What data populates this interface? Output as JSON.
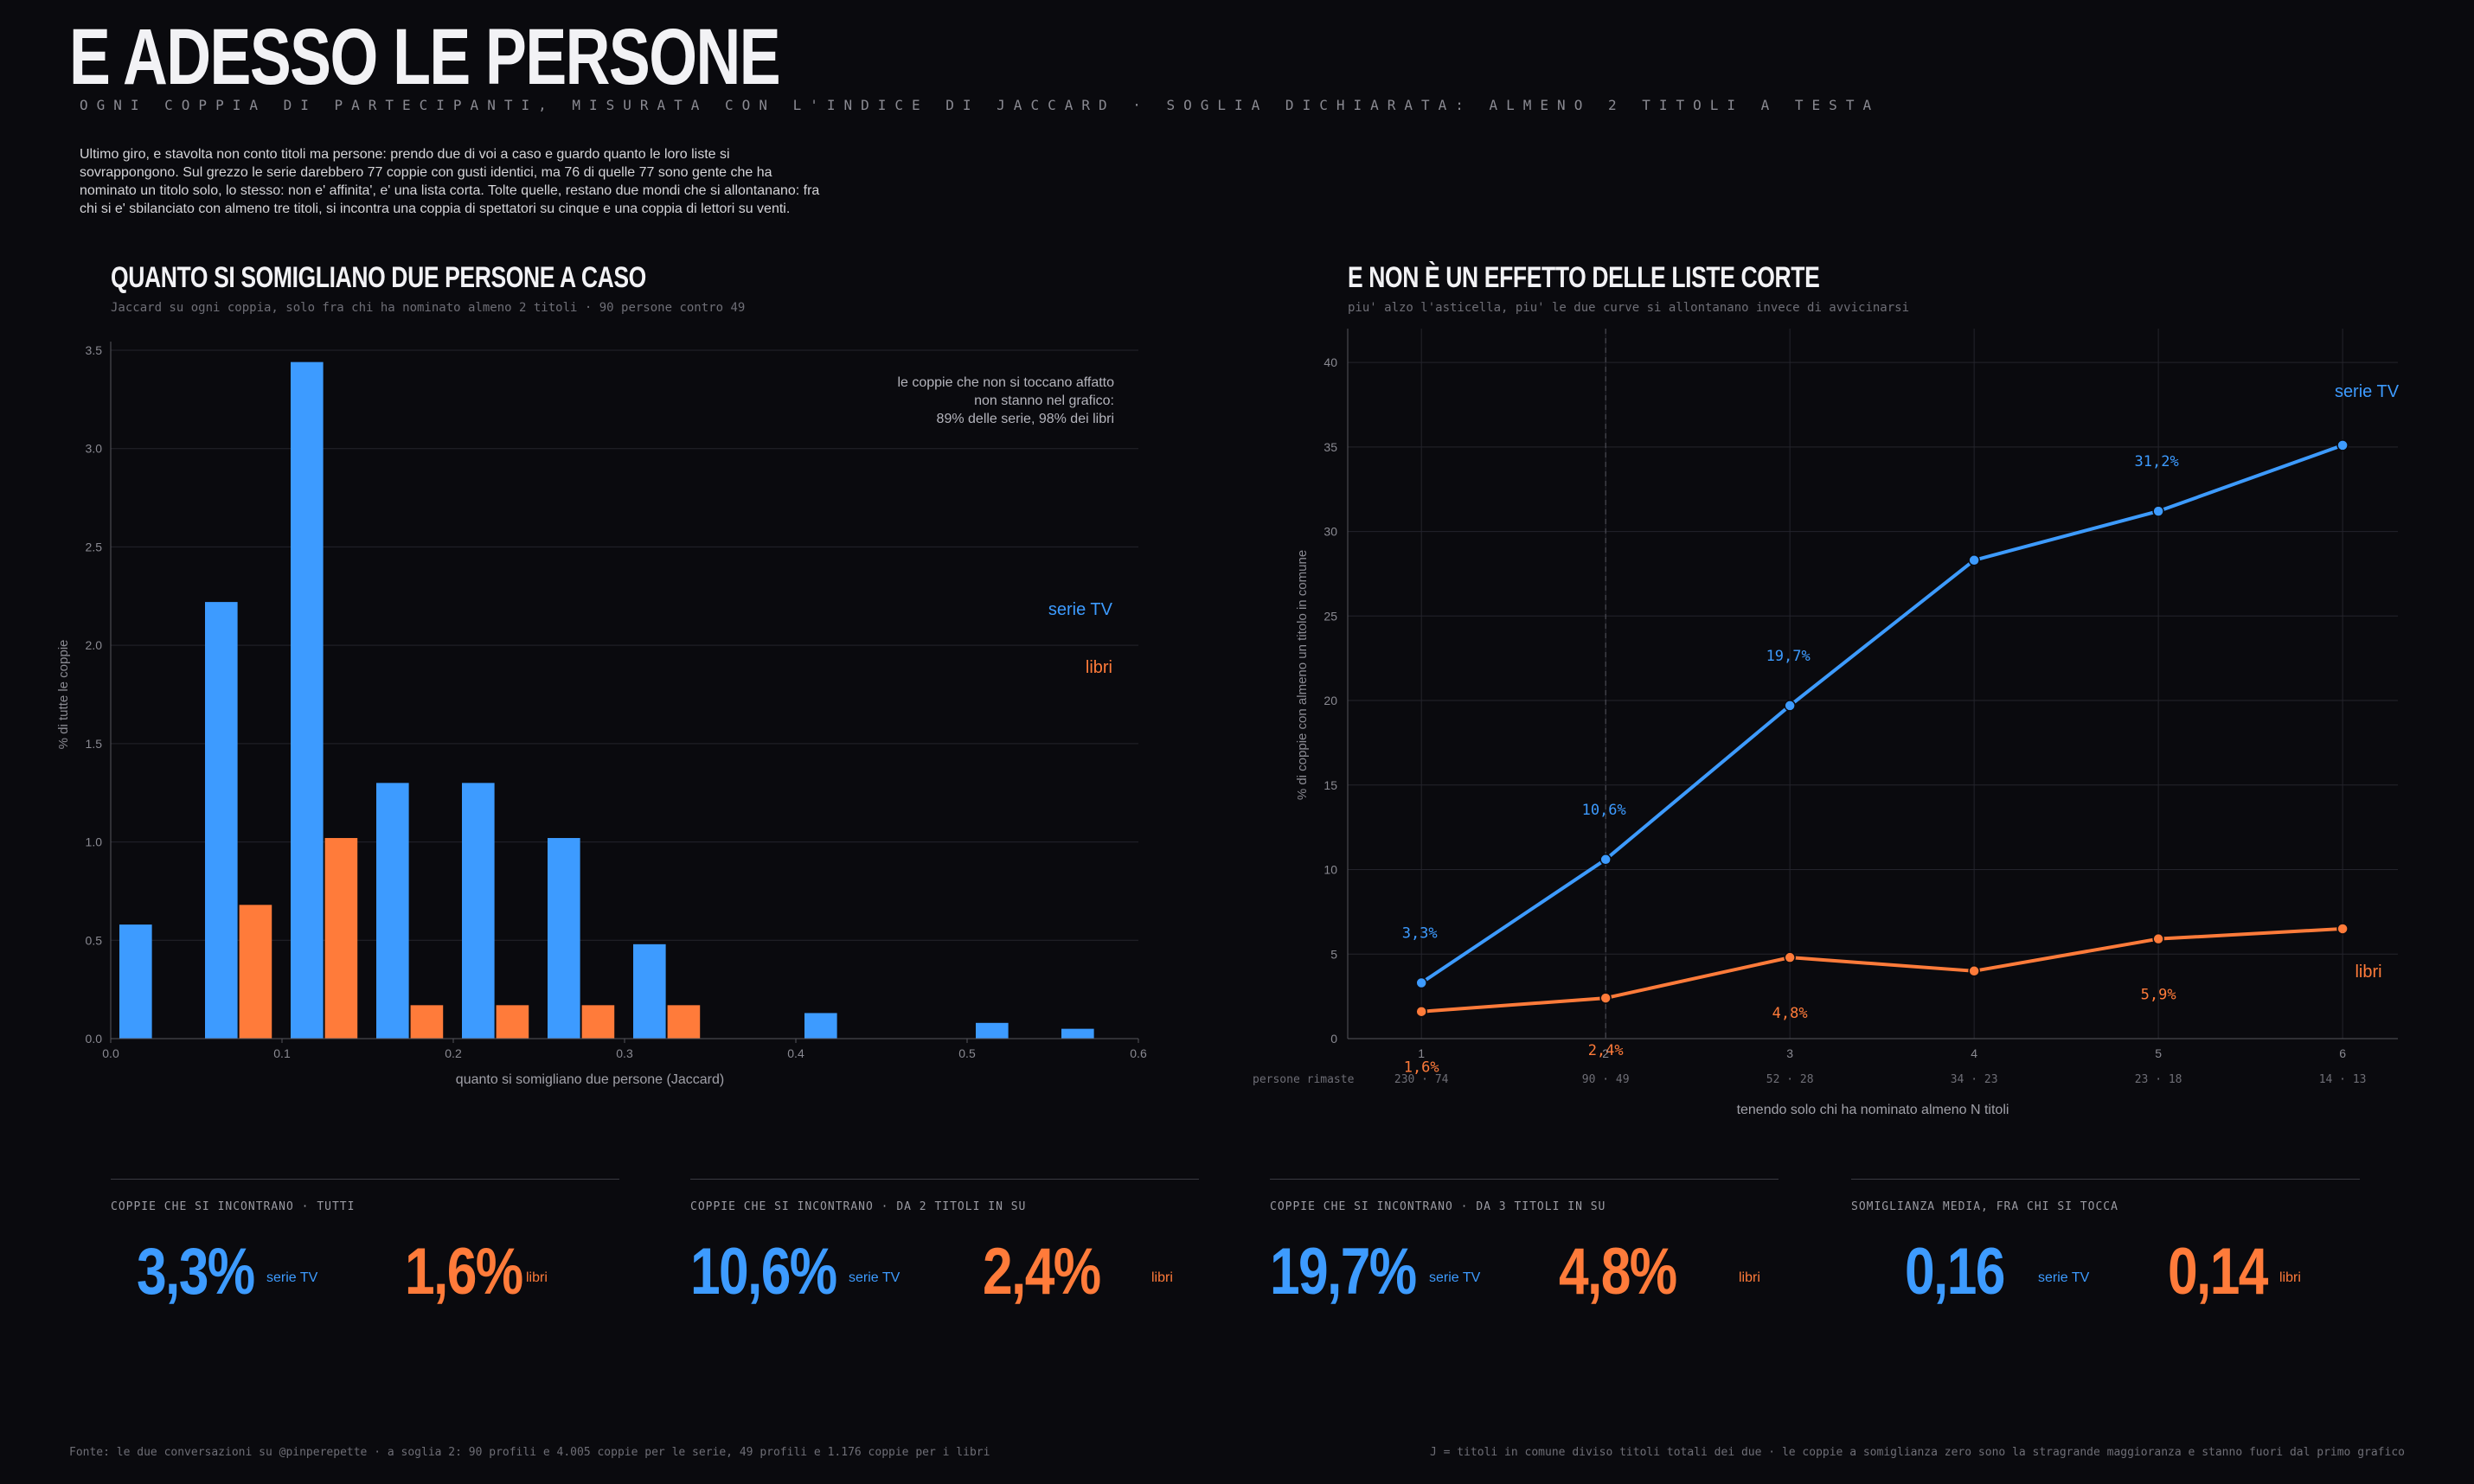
{
  "header": {
    "title": "E ADESSO LE PERSONE",
    "subtitle": "OGNI COPPIA DI PARTECIPANTI, MISURATA CON L'INDICE DI JACCARD  ·  SOGLIA DICHIARATA: ALMENO 2 TITOLI A TESTA",
    "intro": "Ultimo giro, e stavolta non conto titoli ma persone: prendo due di voi a caso e guardo quanto le loro liste si sovrappongono. Sul grezzo le serie darebbero 77 coppie con gusti identici, ma 76 di quelle 77 sono gente che ha nominato un titolo solo, lo stesso: non e' affinita', e' una lista corta. Tolte quelle, restano due mondi che si allontanano: fra chi si e' sbilanciato con almeno tre titoli, si incontra una coppia di spettatori su cinque e una coppia di lettori su venti."
  },
  "colors": {
    "tv": "#3d9bff",
    "books": "#ff7b3a",
    "bg": "#0a0a0e"
  },
  "chart_data": [
    {
      "type": "bar",
      "title": "QUANTO SI SOMIGLIANO DUE PERSONE A CASO",
      "subtitle": "Jaccard su ogni coppia, solo fra chi ha nominato almeno 2 titoli  ·  90 persone contro 49",
      "xlabel": "quanto si somigliano due persone  (Jaccard)",
      "ylabel": "% di tutte le coppie",
      "xlim": [
        0,
        0.6
      ],
      "ylim": [
        0,
        3.5
      ],
      "xticks": [
        "0.0",
        "0.1",
        "0.2",
        "0.3",
        "0.4",
        "0.5",
        "0.6"
      ],
      "yticks": [
        "0.0",
        "0.5",
        "1.0",
        "1.5",
        "2.0",
        "2.5",
        "3.0",
        "3.5"
      ],
      "bin_width": 0.05,
      "x": [
        0.0,
        0.05,
        0.1,
        0.15,
        0.2,
        0.25,
        0.3,
        0.4,
        0.5,
        0.55
      ],
      "series": [
        {
          "name": "serie TV",
          "values": [
            0.58,
            2.22,
            3.44,
            1.3,
            1.3,
            1.02,
            0.48,
            0.13,
            0.08,
            0.05
          ]
        },
        {
          "name": "libri",
          "values": [
            0,
            0.68,
            1.02,
            0.17,
            0.17,
            0.17,
            0.17,
            0,
            0,
            0
          ]
        }
      ],
      "annotation": [
        "le coppie che non si toccano affatto",
        "non stanno nel grafico:",
        "89% delle serie, 98% dei libri"
      ],
      "grid": true
    },
    {
      "type": "line",
      "title": "E NON È UN EFFETTO DELLE LISTE CORTE",
      "subtitle": "piu' alzo l'asticella, piu' le due curve si allontanano invece di avvicinarsi",
      "xlabel": "tenendo solo chi ha nominato almeno N titoli",
      "ylabel": "% di coppie con almeno un titolo in comune",
      "xlim": [
        0.6,
        6.3
      ],
      "ylim": [
        0,
        42
      ],
      "x": [
        1,
        2,
        3,
        4,
        5,
        6
      ],
      "yticks": [
        "0",
        "5",
        "10",
        "15",
        "20",
        "25",
        "30",
        "35",
        "40"
      ],
      "reference_x": 2,
      "series": [
        {
          "name": "serie TV",
          "values": [
            3.3,
            10.6,
            19.7,
            28.3,
            31.2,
            35.1
          ],
          "labels": [
            "3,3%",
            "10,6%",
            "19,7%",
            "",
            "31,2%",
            ""
          ]
        },
        {
          "name": "libri",
          "values": [
            1.6,
            2.4,
            4.8,
            4.0,
            5.9,
            6.5
          ],
          "labels": [
            "1,6%",
            "2,4%",
            "4,8%",
            "",
            "5,9%",
            ""
          ]
        }
      ],
      "people_label": "persone rimaste",
      "people": [
        "230 · 74",
        "90 · 49",
        "52 · 28",
        "34 · 23",
        "23 · 18",
        "14 · 13"
      ],
      "grid": true
    }
  ],
  "kpis": [
    {
      "label": "COPPIE CHE SI INCONTRANO  ·  TUTTI",
      "tv": "3,3%",
      "books": "1,6%"
    },
    {
      "label": "COPPIE CHE SI INCONTRANO  ·  DA 2 TITOLI IN SU",
      "tv": "10,6%",
      "books": "2,4%"
    },
    {
      "label": "COPPIE CHE SI INCONTRANO  ·  DA 3 TITOLI IN SU",
      "tv": "19,7%",
      "books": "4,8%"
    },
    {
      "label": "SOMIGLIANZA MEDIA, FRA CHI SI TOCCA",
      "tv": "0,16",
      "books": "0,14"
    }
  ],
  "kpi_units": {
    "tv": "serie TV",
    "books": "libri"
  },
  "footer": {
    "left": "Fonte: le due conversazioni su @pinperepette  ·  a soglia 2: 90 profili e 4.005 coppie per le serie, 49 profili e 1.176 coppie per i libri",
    "right": "J = titoli in comune diviso titoli totali dei due  ·  le coppie a somiglianza zero sono la stragrande maggioranza e stanno fuori dal primo grafico"
  }
}
